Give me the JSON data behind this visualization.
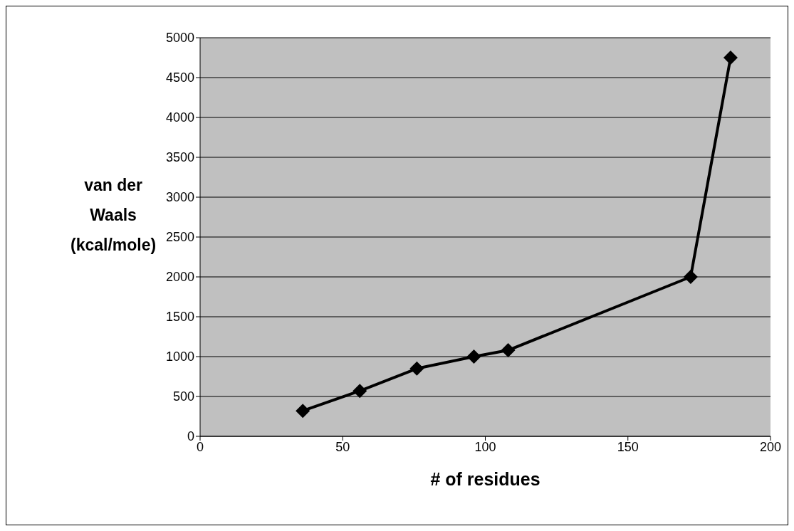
{
  "chart_data": {
    "type": "line",
    "xlabel": "# of residues",
    "ylabel": "van der Waals (kcal/mole)",
    "x": [
      36,
      56,
      76,
      96,
      108,
      172,
      186
    ],
    "series": [
      {
        "color": "#000000",
        "values": [
          320,
          570,
          850,
          1000,
          1080,
          2000,
          4750
        ]
      }
    ],
    "xlim": [
      0,
      200
    ],
    "xticks": [
      0,
      50,
      100,
      150,
      200
    ],
    "ylim": [
      0,
      5000
    ],
    "yticks": [
      0,
      500,
      1000,
      1500,
      2000,
      2500,
      3000,
      3500,
      4000,
      4500,
      5000
    ],
    "grid": "y",
    "marker": "diamond",
    "line_style": "solid",
    "legend": false
  }
}
